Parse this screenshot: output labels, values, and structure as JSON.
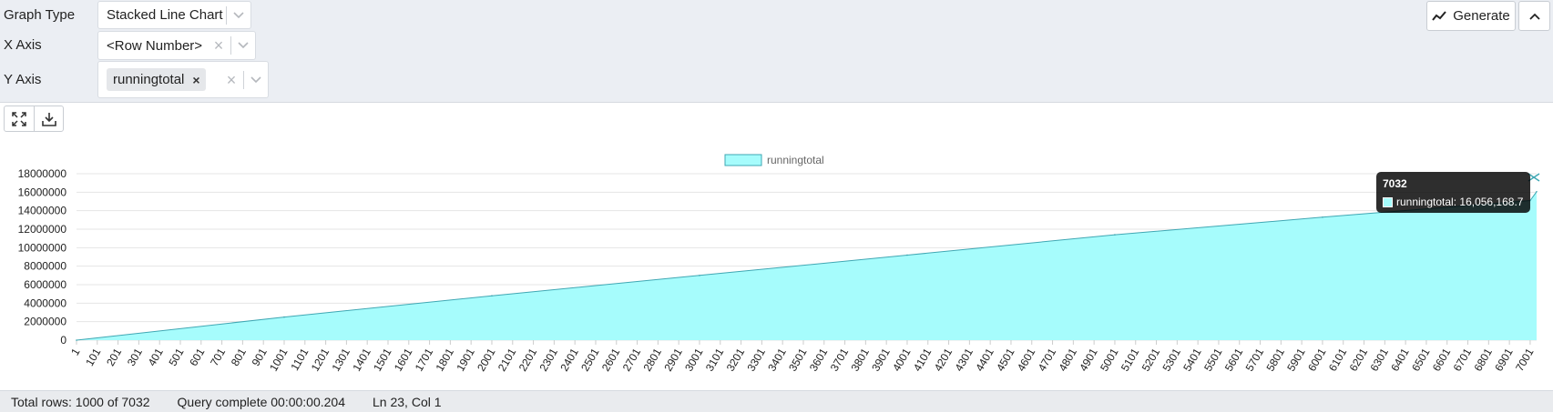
{
  "controls": {
    "graph_type": {
      "label": "Graph Type",
      "value": "Stacked Line Chart"
    },
    "x_axis": {
      "label": "X Axis",
      "value": "<Row Number>"
    },
    "y_axis": {
      "label": "Y Axis",
      "chip": "runningtotal"
    },
    "generate_label": "Generate"
  },
  "chart_toolbar": {
    "icons": [
      "expand-icon",
      "download-icon"
    ]
  },
  "tooltip": {
    "title": "7032",
    "series": "runningtotal",
    "value": "16,056,168.7"
  },
  "status": {
    "rows": "Total rows: 1000 of 7032",
    "query": "Query complete 00:00:00.204",
    "cursor": "Ln 23, Col 1"
  },
  "colors": {
    "fill": "#a6fcfc",
    "line": "#3fa7b3",
    "grid": "#e4e4e4"
  },
  "chart_data": {
    "type": "area",
    "title": "",
    "xlabel": "",
    "ylabel": "",
    "legend": "runningtotal",
    "ylim": [
      0,
      18000000
    ],
    "yticks": [
      "0",
      "2000000",
      "4000000",
      "6000000",
      "8000000",
      "10000000",
      "12000000",
      "14000000",
      "16000000",
      "18000000"
    ],
    "xticks": [
      "1",
      "101",
      "201",
      "301",
      "401",
      "501",
      "601",
      "701",
      "801",
      "901",
      "1001",
      "1101",
      "1201",
      "1301",
      "1401",
      "1501",
      "1601",
      "1701",
      "1801",
      "1901",
      "2001",
      "2101",
      "2201",
      "2301",
      "2401",
      "2501",
      "2601",
      "2701",
      "2801",
      "2901",
      "3001",
      "3101",
      "3201",
      "3301",
      "3401",
      "3501",
      "3601",
      "3701",
      "3801",
      "3901",
      "4001",
      "4101",
      "4201",
      "4301",
      "4401",
      "4501",
      "4601",
      "4701",
      "4801",
      "4901",
      "5001",
      "5101",
      "5201",
      "5301",
      "5401",
      "5501",
      "5601",
      "5701",
      "5801",
      "5901",
      "6001",
      "6101",
      "6201",
      "6301",
      "6401",
      "6501",
      "6601",
      "6701",
      "6801",
      "6901",
      "7001"
    ],
    "xlim": [
      1,
      7032
    ],
    "series": [
      {
        "name": "runningtotal",
        "x": [
          1,
          1001,
          2001,
          3001,
          4001,
          5001,
          6001,
          7001,
          7032
        ],
        "values": [
          0,
          2500000,
          4800000,
          7000000,
          9200000,
          11400000,
          13300000,
          15100000,
          16056168.7
        ]
      }
    ]
  }
}
